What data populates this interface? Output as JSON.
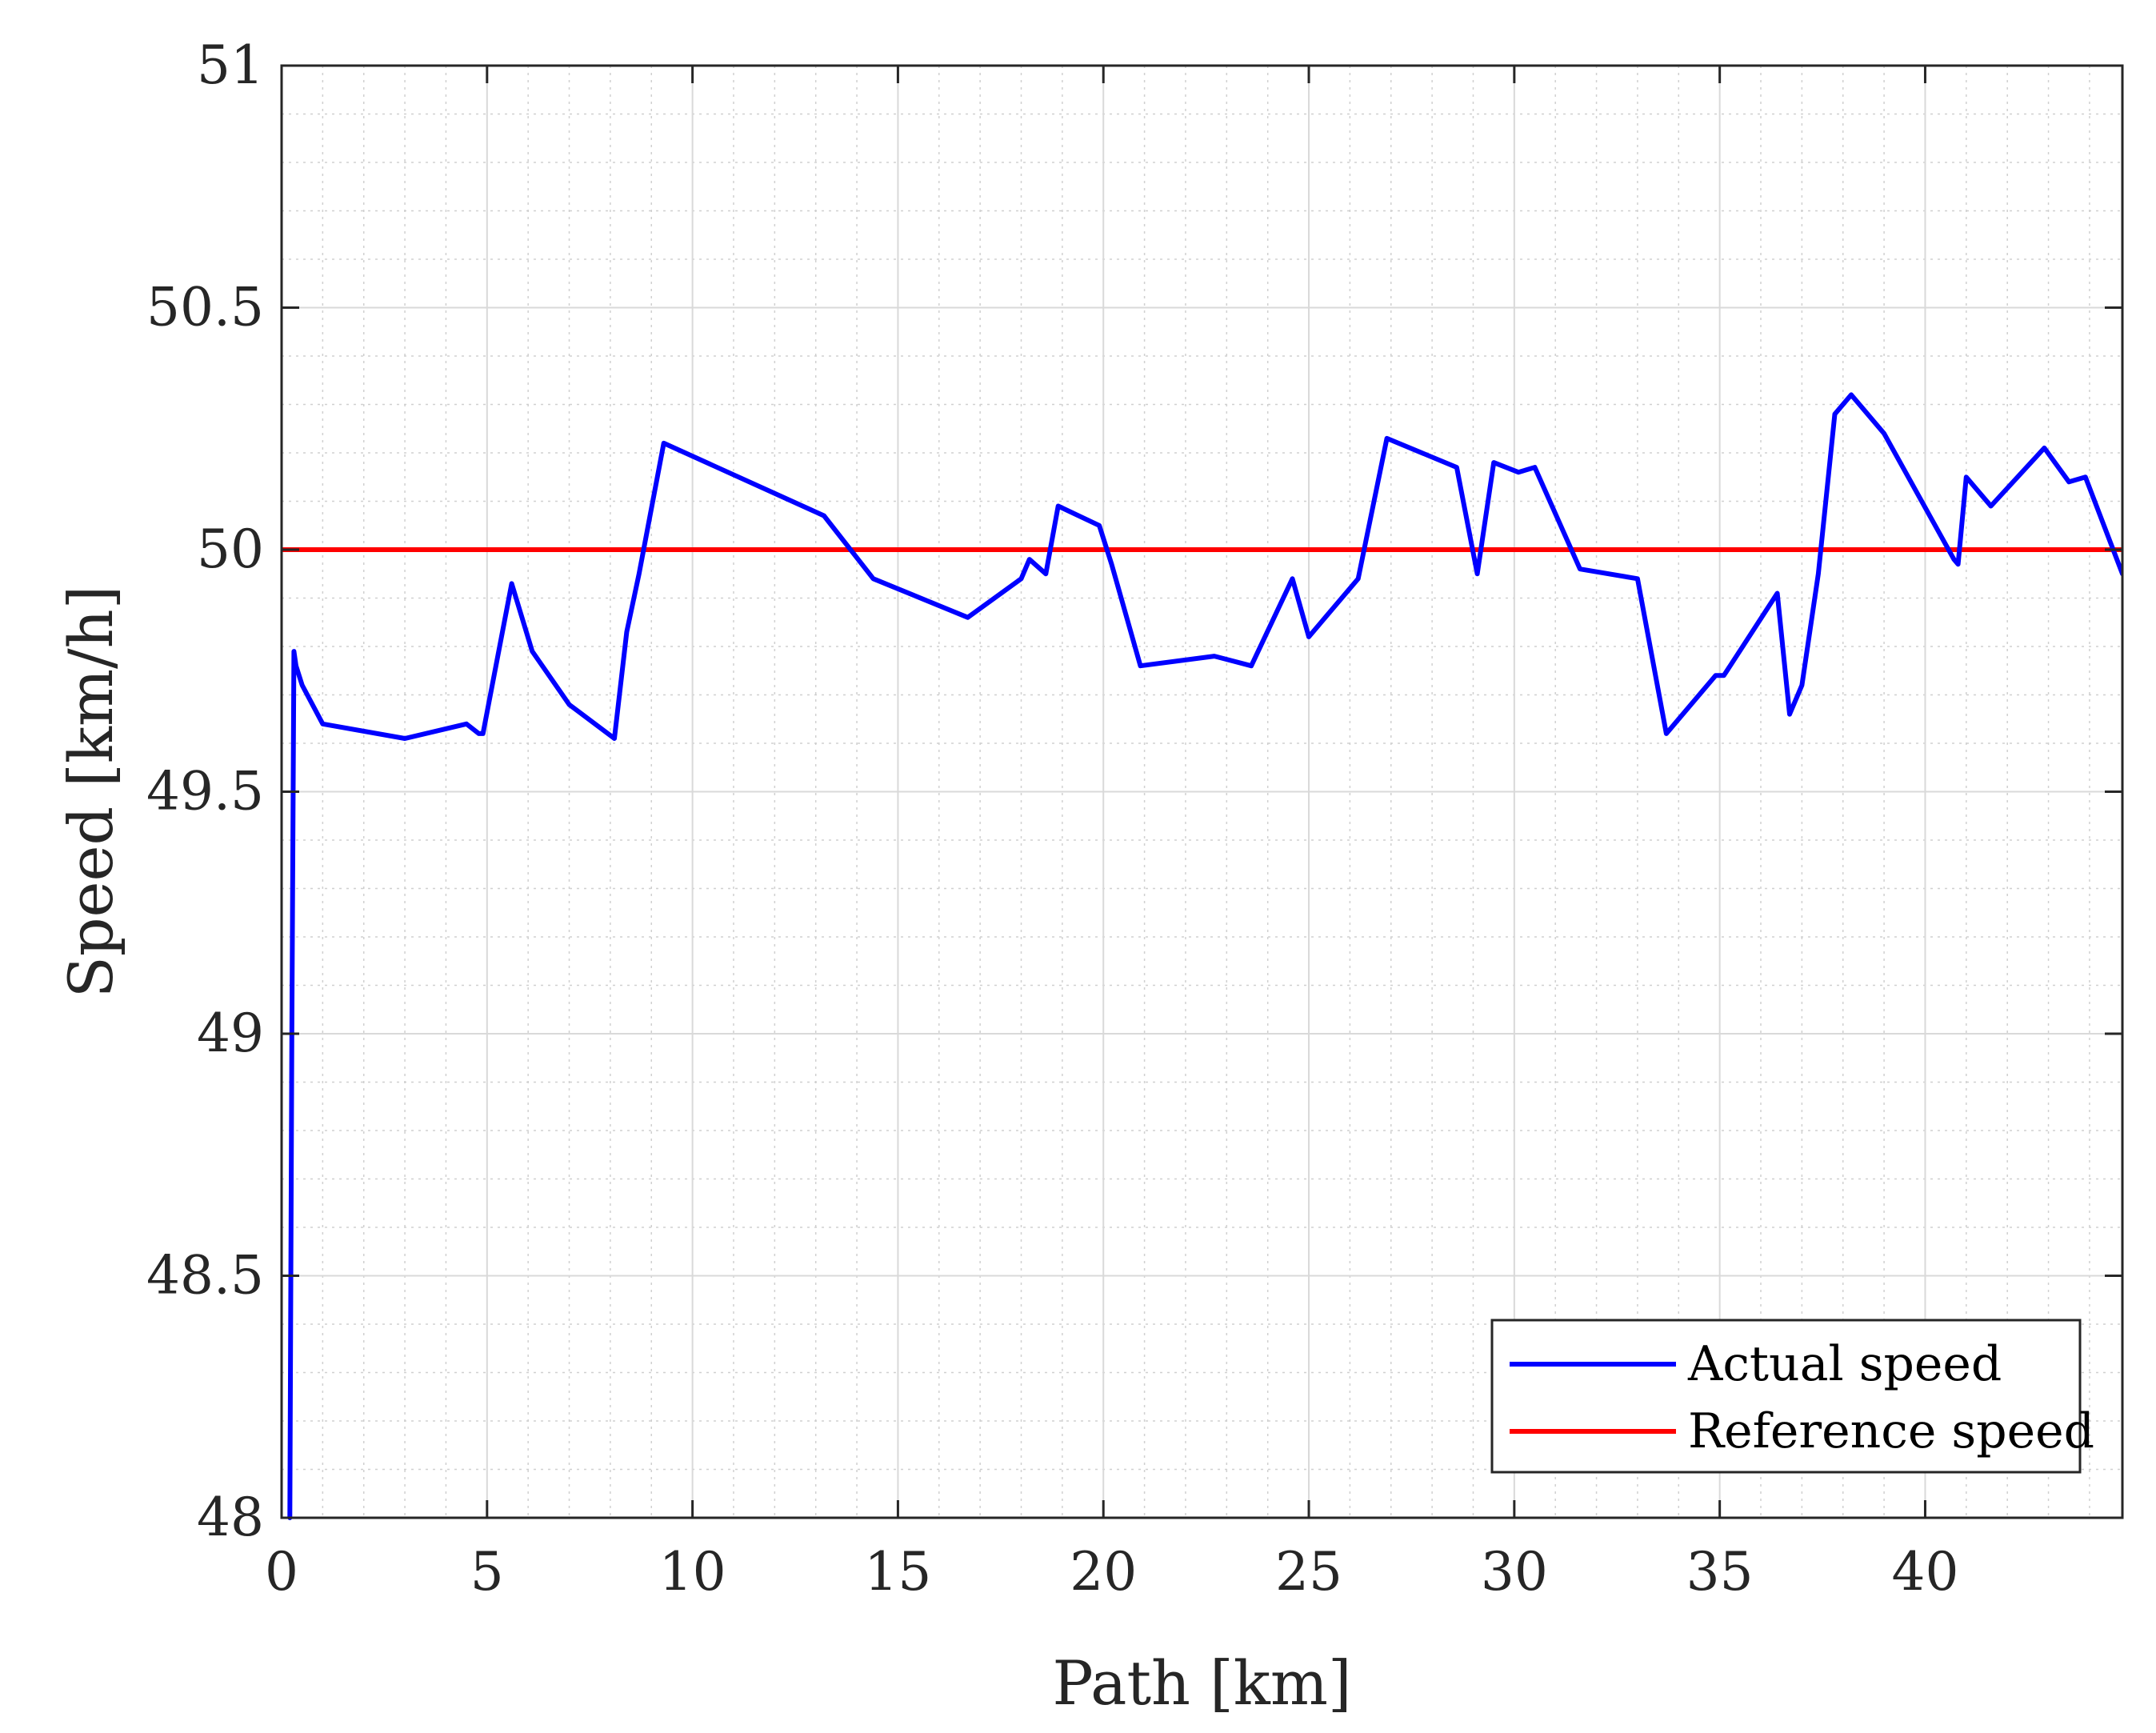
{
  "chart_data": {
    "type": "line",
    "title": "",
    "xlabel": "Path [km]",
    "ylabel": "Speed [km/h]",
    "xlim": [
      0,
      44.8
    ],
    "ylim": [
      48,
      51
    ],
    "xticks": [
      0,
      5,
      10,
      15,
      20,
      25,
      30,
      35,
      40
    ],
    "xtick_labels": [
      "0",
      "5",
      "10",
      "15",
      "20",
      "25",
      "30",
      "35",
      "40"
    ],
    "yticks": [
      48,
      48.5,
      49,
      49.5,
      50,
      50.5,
      51
    ],
    "ytick_labels": [
      "48",
      "48.5",
      "49",
      "49.5",
      "50",
      "50.5",
      "51"
    ],
    "grid": true,
    "minor_grid": true,
    "legend_position": "bottom-right",
    "series": [
      {
        "name": "Actual speed",
        "color": "#0000ff",
        "x": [
          0.2,
          0.25,
          0.3,
          0.35,
          0.5,
          1.0,
          3.0,
          4.5,
          4.8,
          4.9,
          5.6,
          6.1,
          7.0,
          8.1,
          8.4,
          8.7,
          9.3,
          13.2,
          14.4,
          16.7,
          18.0,
          18.2,
          18.6,
          18.9,
          19.9,
          20.2,
          20.9,
          22.7,
          23.6,
          24.6,
          25.0,
          26.2,
          26.9,
          28.6,
          29.1,
          29.5,
          30.1,
          30.5,
          31.6,
          33.0,
          33.7,
          34.9,
          35.1,
          36.4,
          36.7,
          37.0,
          37.4,
          37.8,
          38.2,
          39.0,
          40.7,
          40.8,
          41.0,
          41.6,
          42.9,
          43.5,
          43.9,
          44.8
        ],
        "y": [
          48.0,
          49.0,
          49.79,
          49.76,
          49.72,
          49.64,
          49.61,
          49.64,
          49.62,
          49.62,
          49.93,
          49.79,
          49.68,
          49.61,
          49.83,
          49.95,
          50.22,
          50.07,
          49.94,
          49.86,
          49.94,
          49.98,
          49.95,
          50.09,
          50.05,
          49.97,
          49.76,
          49.78,
          49.76,
          49.94,
          49.82,
          49.94,
          50.23,
          50.17,
          49.95,
          50.18,
          50.16,
          50.17,
          49.96,
          49.94,
          49.62,
          49.74,
          49.74,
          49.91,
          49.66,
          49.72,
          49.95,
          50.28,
          50.32,
          50.24,
          49.98,
          49.97,
          50.15,
          50.09,
          50.21,
          50.14,
          50.15,
          49.95
        ]
      },
      {
        "name": "Reference speed",
        "color": "#ff0000",
        "x": [
          0,
          44.8
        ],
        "y": [
          50,
          50
        ]
      }
    ]
  }
}
